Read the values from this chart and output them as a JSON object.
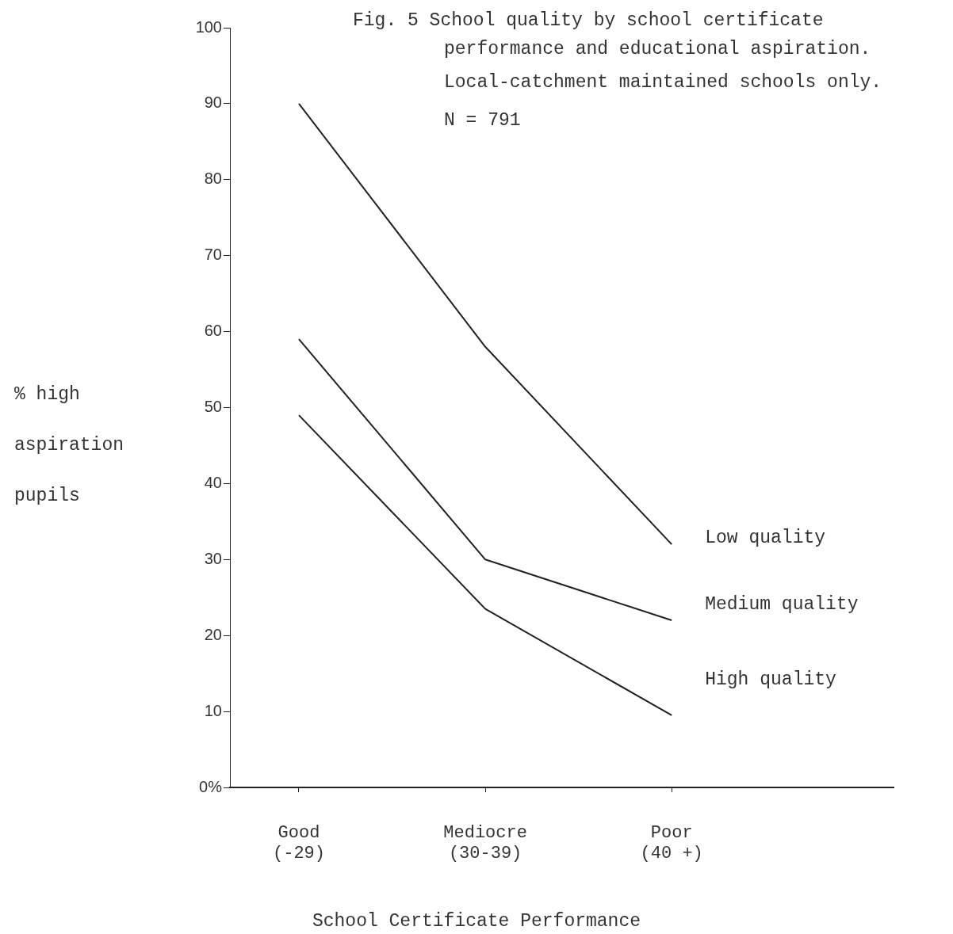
{
  "chart_data": {
    "type": "line",
    "title": "Fig. 5 School quality by school certificate performance and educational aspiration.",
    "annotations": [
      "Local-catchment maintained schools only.",
      "N = 791"
    ],
    "xlabel": "School Certificate Performance",
    "ylabel": "% high aspiration pupils",
    "categories": [
      "Good\n(-29)",
      "Mediocre\n(30-39)",
      "Poor\n(40 +)"
    ],
    "series": [
      {
        "name": "Low quality",
        "color": "#222222",
        "values": [
          90,
          58,
          32
        ]
      },
      {
        "name": "Medium quality",
        "color": "#222222",
        "values": [
          59,
          30,
          22
        ]
      },
      {
        "name": "High quality",
        "color": "#222222",
        "values": [
          49,
          23.5,
          9.5
        ]
      }
    ],
    "ylim": [
      0,
      100
    ],
    "yticks": [
      {
        "value": 0,
        "label": "0%"
      },
      10,
      20,
      30,
      40,
      50,
      60,
      70,
      80,
      90,
      100
    ],
    "grid": false,
    "legend": false,
    "marker": "none",
    "line_style": "solid"
  }
}
